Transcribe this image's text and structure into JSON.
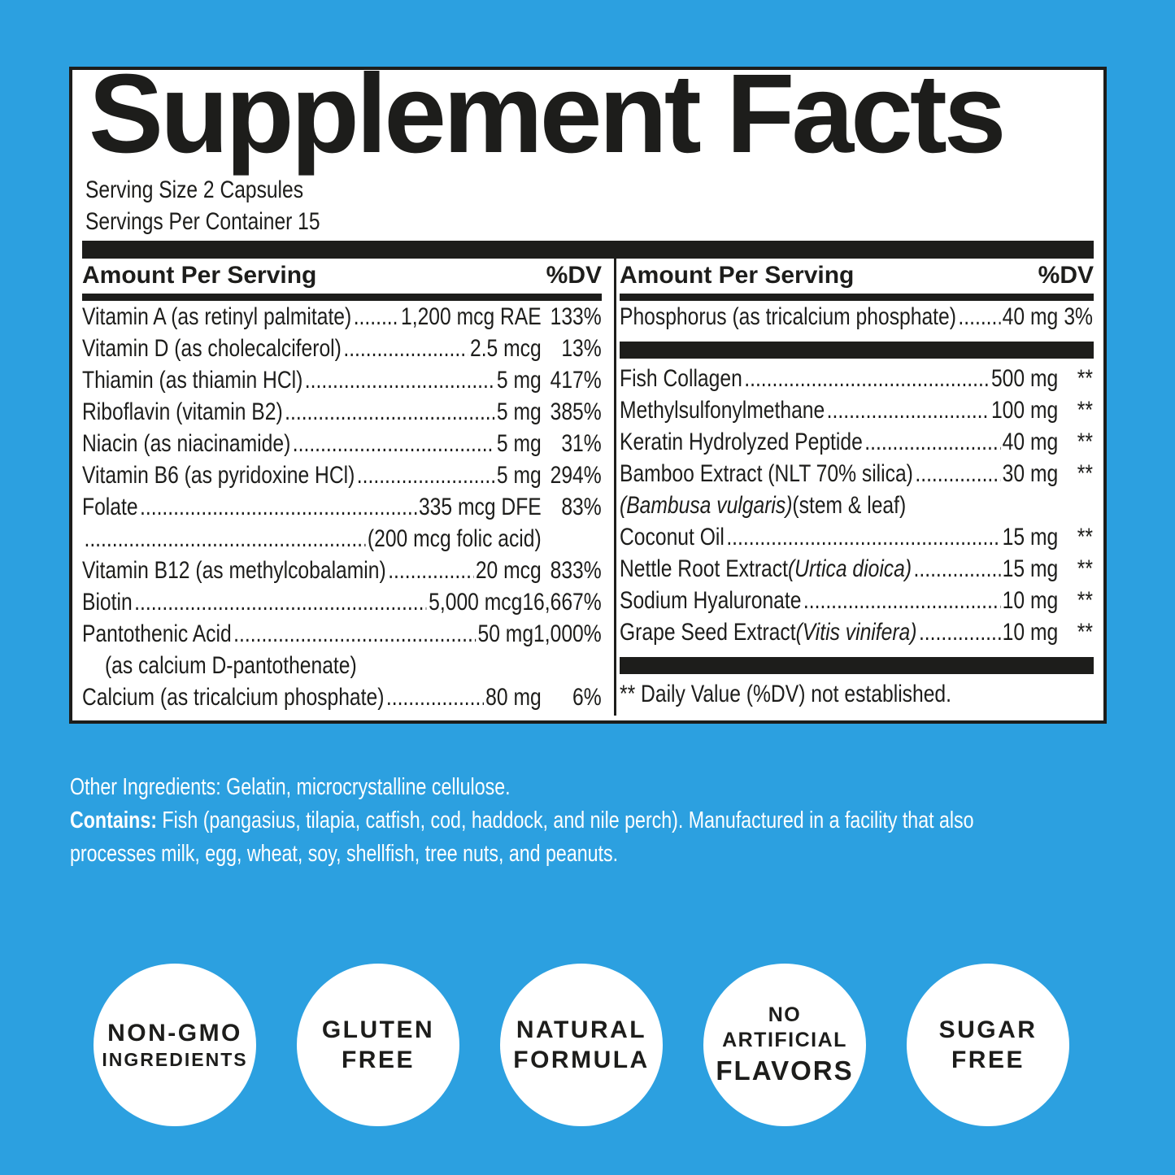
{
  "colors": {
    "background": "#2CA0E0",
    "panel_bg": "#FFFFFF",
    "ink": "#1D1D1B",
    "text_on_blue": "#FFFFFF"
  },
  "panel": {
    "title": "Supplement Facts",
    "serving_size": "Serving Size 2 Capsules",
    "servings_per_container": "Servings Per Container 15",
    "header": {
      "label": "Amount Per Serving",
      "dv": "%DV"
    },
    "left_rows": [
      {
        "pre": "Vitamin A (as retinyl palmitate)",
        "amount": "1,200 mcg RAE",
        "dv": "133%"
      },
      {
        "pre": "Vitamin D (as cholecalciferol)",
        "amount": "2.5 mcg",
        "dv": "13%"
      },
      {
        "pre": "Thiamin (as thiamin HCl)",
        "amount": "5 mg",
        "dv": "417%"
      },
      {
        "pre": "Riboflavin (vitamin B2)",
        "amount": "5 mg",
        "dv": "385%"
      },
      {
        "pre": "Niacin (as niacinamide)",
        "amount": "5 mg",
        "dv": "31%"
      },
      {
        "pre": "Vitamin B6 (as pyridoxine HCl)",
        "amount": "5 mg",
        "dv": "294%"
      },
      {
        "pre": "Folate",
        "amount": "335 mcg DFE",
        "dv": "83%"
      },
      {
        "pre": "",
        "amount": "(200 mcg folic acid)",
        "dv": ""
      },
      {
        "pre": "Vitamin B12 (as methylcobalamin)",
        "amount": "20 mcg",
        "dv": "833%"
      },
      {
        "pre": "Biotin",
        "amount": "5,000 mcg",
        "dv": "16,667%"
      },
      {
        "pre": "Pantothenic Acid",
        "amount": "50 mg",
        "dv": "1,000%"
      },
      {
        "pre": "(as calcium D-pantothenate)",
        "indent": true,
        "leader": false
      },
      {
        "pre": "Calcium (as tricalcium phosphate)",
        "amount": "80 mg",
        "dv": "6%"
      }
    ],
    "right_top_rows": [
      {
        "pre": "Phosphorus (as tricalcium phosphate)",
        "amount": "40 mg",
        "dv": "3%"
      }
    ],
    "right_rows": [
      {
        "pre": "Fish Collagen",
        "amount": "500 mg",
        "dv": "**"
      },
      {
        "pre": "Methylsulfonylmethane",
        "amount": "100 mg",
        "dv": "**"
      },
      {
        "pre": "Keratin Hydrolyzed Peptide",
        "amount": "40 mg",
        "dv": "**"
      },
      {
        "pre": "Bamboo Extract (NLT 70% silica)",
        "amount": "30 mg",
        "dv": "**"
      },
      {
        "it": "(Bambusa vulgaris)",
        "post": " (stem & leaf)",
        "leader": false
      },
      {
        "pre": "Coconut Oil",
        "amount": "15 mg",
        "dv": "**"
      },
      {
        "pre": "Nettle Root Extract ",
        "it": "(Urtica dioica)",
        "amount": "15 mg",
        "dv": "**"
      },
      {
        "pre": "Sodium Hyaluronate",
        "amount": "10 mg",
        "dv": "**"
      },
      {
        "pre": "Grape Seed Extract ",
        "it": "(Vitis vinifera)",
        "amount": "10 mg",
        "dv": "**"
      }
    ],
    "footnote": "** Daily Value (%DV) not established."
  },
  "other_ingredients": {
    "line1": "Other Ingredients: Gelatin, microcrystalline cellulose.",
    "contains_label": "Contains:",
    "contains_line1": " Fish (pangasius, tilapia, catfish, cod, haddock, and nile perch). Manufactured in a facility that also",
    "contains_line2": "processes milk, egg, wheat, soy, shellfish, tree nuts, and peanuts."
  },
  "badges": [
    {
      "lines": [
        {
          "text": "NON-GMO",
          "size": "lg"
        },
        {
          "text": "INGREDIENTS",
          "size": "sm"
        }
      ]
    },
    {
      "lines": [
        {
          "text": "GLUTEN",
          "size": "lg"
        },
        {
          "text": "FREE",
          "size": "lg"
        }
      ]
    },
    {
      "lines": [
        {
          "text": "NATURAL",
          "size": "lg"
        },
        {
          "text": "FORMULA",
          "size": "lg"
        }
      ]
    },
    {
      "lines": [
        {
          "text": "NO ARTIFICIAL",
          "size": "md"
        },
        {
          "text": "FLAVORS",
          "size": "xl"
        }
      ]
    },
    {
      "lines": [
        {
          "text": "SUGAR",
          "size": "lg"
        },
        {
          "text": "FREE",
          "size": "lg"
        }
      ]
    }
  ]
}
